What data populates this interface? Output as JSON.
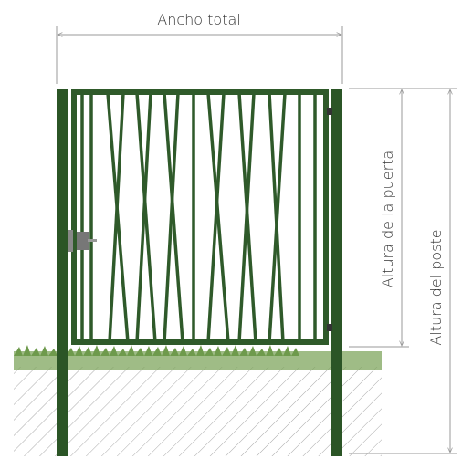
{
  "dimensions": {
    "total_width": "Ancho total",
    "gate_height": "Altura de la puerta",
    "post_height": "Altura del poste"
  }
}
